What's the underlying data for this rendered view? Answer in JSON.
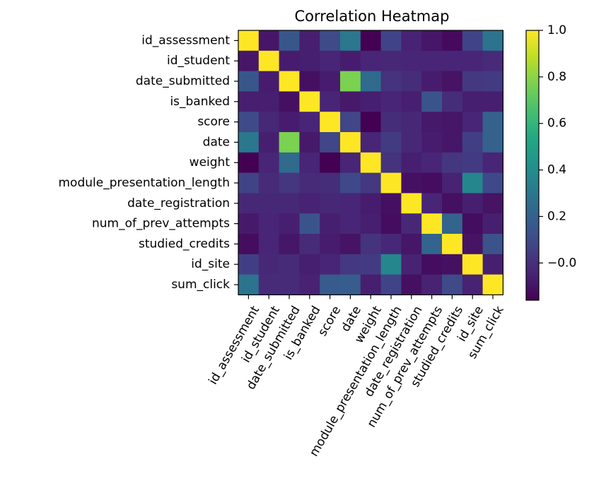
{
  "chart_data": {
    "type": "heatmap",
    "title": "Correlation Heatmap",
    "xlabel": "",
    "ylabel": "",
    "variables": [
      "id_assessment",
      "id_student",
      "date_submitted",
      "is_banked",
      "score",
      "date",
      "weight",
      "module_presentation_length",
      "date_registration",
      "num_of_prev_attempts",
      "studied_credits",
      "id_site",
      "sum_click"
    ],
    "matrix": [
      [
        1.0,
        -0.09,
        0.15,
        -0.06,
        0.1,
        0.3,
        -0.16,
        0.07,
        -0.05,
        -0.09,
        -0.13,
        0.07,
        0.28
      ],
      [
        -0.09,
        1.0,
        -0.07,
        -0.06,
        -0.04,
        -0.07,
        -0.04,
        -0.03,
        -0.04,
        -0.04,
        -0.04,
        -0.04,
        -0.02
      ],
      [
        0.15,
        -0.07,
        1.0,
        -0.11,
        -0.07,
        0.77,
        0.24,
        0.01,
        -0.01,
        -0.07,
        -0.1,
        0.03,
        0.04
      ],
      [
        -0.06,
        -0.06,
        -0.11,
        1.0,
        -0.04,
        -0.08,
        -0.06,
        -0.04,
        -0.06,
        0.14,
        -0.01,
        -0.06,
        -0.06
      ],
      [
        0.1,
        -0.03,
        -0.07,
        -0.04,
        1.0,
        0.08,
        -0.16,
        -0.01,
        -0.03,
        -0.08,
        -0.09,
        -0.04,
        0.2
      ],
      [
        0.3,
        -0.06,
        0.77,
        -0.08,
        0.08,
        1.0,
        -0.04,
        0.04,
        -0.03,
        -0.07,
        -0.09,
        0.05,
        0.2
      ],
      [
        -0.16,
        -0.04,
        0.24,
        -0.04,
        -0.16,
        -0.04,
        1.0,
        0.01,
        -0.06,
        -0.04,
        0.02,
        0.04,
        -0.04
      ],
      [
        0.07,
        -0.02,
        0.02,
        -0.02,
        -0.01,
        0.09,
        0.03,
        1.0,
        -0.11,
        -0.12,
        -0.05,
        0.37,
        0.09
      ],
      [
        -0.03,
        -0.03,
        -0.03,
        -0.05,
        -0.03,
        -0.04,
        -0.07,
        -0.11,
        1.0,
        -0.04,
        -0.11,
        -0.06,
        -0.1
      ],
      [
        -0.08,
        -0.04,
        -0.06,
        0.14,
        -0.06,
        -0.04,
        -0.06,
        -0.12,
        -0.03,
        1.0,
        0.21,
        -0.12,
        -0.06
      ],
      [
        -0.12,
        -0.04,
        -0.09,
        -0.02,
        -0.07,
        -0.1,
        0.01,
        -0.03,
        -0.09,
        0.21,
        1.0,
        -0.1,
        0.13
      ],
      [
        0.05,
        -0.03,
        -0.02,
        -0.06,
        -0.04,
        0.03,
        0.04,
        0.37,
        -0.05,
        -0.12,
        -0.11,
        1.0,
        -0.06
      ],
      [
        0.28,
        -0.02,
        -0.02,
        -0.05,
        0.17,
        0.18,
        -0.06,
        0.07,
        -0.11,
        -0.05,
        0.1,
        -0.05,
        1.0
      ]
    ],
    "colormap": "viridis",
    "vmin": -0.16,
    "vmax": 1.0,
    "colorbar_ticks": [
      -0.0,
      0.2,
      0.4,
      0.6,
      0.8,
      1.0
    ],
    "colorbar_tick_labels": [
      "−0.0",
      "0.2",
      "0.4",
      "0.6",
      "0.8",
      "1.0"
    ],
    "grid": false,
    "x_tick_rotation_deg": 60
  }
}
